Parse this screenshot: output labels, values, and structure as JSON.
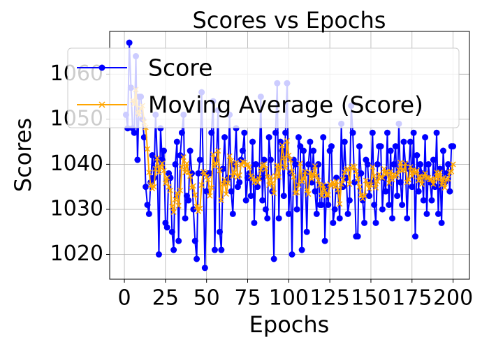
{
  "chart_data": {
    "type": "line",
    "title": "Scores vs Epochs",
    "x_label": "Epochs",
    "y_label": "Scores",
    "x": [
      1,
      2,
      3,
      4,
      5,
      6,
      7,
      8,
      9,
      10,
      11,
      12,
      13,
      14,
      15,
      16,
      17,
      18,
      19,
      20,
      21,
      22,
      23,
      24,
      25,
      26,
      27,
      28,
      29,
      30,
      31,
      32,
      33,
      34,
      35,
      36,
      37,
      38,
      39,
      40,
      41,
      42,
      43,
      44,
      45,
      46,
      47,
      48,
      49,
      50,
      51,
      52,
      53,
      54,
      55,
      56,
      57,
      58,
      59,
      60,
      61,
      62,
      63,
      64,
      65,
      66,
      67,
      68,
      69,
      70,
      71,
      72,
      73,
      74,
      75,
      76,
      77,
      78,
      79,
      80,
      81,
      82,
      83,
      84,
      85,
      86,
      87,
      88,
      89,
      90,
      91,
      92,
      93,
      94,
      95,
      96,
      97,
      98,
      99,
      100,
      101,
      102,
      103,
      104,
      105,
      106,
      107,
      108,
      109,
      110,
      111,
      112,
      113,
      114,
      115,
      116,
      117,
      118,
      119,
      120,
      121,
      122,
      123,
      124,
      125,
      126,
      127,
      128,
      129,
      130,
      131,
      132,
      133,
      134,
      135,
      136,
      137,
      138,
      139,
      140,
      141,
      142,
      143,
      144,
      145,
      146,
      147,
      148,
      149,
      150,
      151,
      152,
      153,
      154,
      155,
      156,
      157,
      158,
      159,
      160,
      161,
      162,
      163,
      164,
      165,
      166,
      167,
      168,
      169,
      170,
      171,
      172,
      173,
      174,
      175,
      176,
      177,
      178,
      179,
      180,
      181,
      182,
      183,
      184,
      185,
      186,
      187,
      188,
      189,
      190,
      191,
      192,
      193,
      194,
      195,
      196,
      197,
      198,
      199,
      200
    ],
    "series": [
      {
        "name": "Score",
        "color": "#0000ff",
        "marker": "o",
        "values": [
          1051,
          1048,
          1067,
          1057,
          1048,
          1047,
          1064,
          1041,
          1055,
          1055,
          1050,
          1046,
          1035,
          1031,
          1029,
          1036,
          1042,
          1037,
          1051,
          1041,
          1020,
          1048,
          1041,
          1043,
          1027,
          1026,
          1038,
          1037,
          1025,
          1021,
          1040,
          1045,
          1023,
          1042,
          1047,
          1051,
          1028,
          1033,
          1032,
          1043,
          1038,
          1030,
          1023,
          1019,
          1038,
          1041,
          1056,
          1038,
          1017,
          1034,
          1038,
          1038,
          1047,
          1054,
          1021,
          1041,
          1052,
          1025,
          1021,
          1039,
          1046,
          1036,
          1037,
          1051,
          1034,
          1029,
          1040,
          1048,
          1035,
          1036,
          1041,
          1043,
          1047,
          1032,
          1037,
          1038,
          1033,
          1045,
          1027,
          1040,
          1035,
          1037,
          1055,
          1032,
          1041,
          1030,
          1028,
          1046,
          1041,
          1034,
          1019,
          1047,
          1058,
          1028,
          1045,
          1043,
          1033,
          1047,
          1058,
          1029,
          1038,
          1020,
          1041,
          1040,
          1030,
          1046,
          1044,
          1021,
          1043,
          1038,
          1025,
          1040,
          1045,
          1036,
          1043,
          1034,
          1029,
          1040,
          1031,
          1031,
          1046,
          1023,
          1035,
          1031,
          1043,
          1044,
          1027,
          1030,
          1037,
          1034,
          1028,
          1049,
          1035,
          1045,
          1037,
          1029,
          1032,
          1053,
          1047,
          1036,
          1024,
          1024,
          1044,
          1038,
          1032,
          1027,
          1041,
          1040,
          1033,
          1036,
          1047,
          1031,
          1027,
          1040,
          1044,
          1044,
          1030,
          1037,
          1034,
          1047,
          1031,
          1043,
          1028,
          1040,
          1044,
          1033,
          1049,
          1036,
          1031,
          1045,
          1040,
          1028,
          1039,
          1045,
          1035,
          1047,
          1024,
          1042,
          1034,
          1040,
          1038,
          1032,
          1046,
          1029,
          1040,
          1036,
          1032,
          1041,
          1035,
          1047,
          1029,
          1039,
          1027,
          1043,
          1036,
          1038,
          1040,
          1034,
          1044,
          1044
        ]
      },
      {
        "name": "Moving Average (Score)",
        "color": "#ffa500",
        "marker": "x",
        "values": [
          null,
          null,
          null,
          null,
          1054.2,
          1053.4,
          1056.6,
          1051.4,
          1051.0,
          1052.4,
          1053.0,
          1049.4,
          1048.2,
          1043.4,
          1038.2,
          1035.4,
          1034.6,
          1035.0,
          1039.0,
          1041.4,
          1038.2,
          1039.4,
          1040.2,
          1038.6,
          1035.8,
          1037.0,
          1035.0,
          1034.2,
          1030.6,
          1029.4,
          1032.2,
          1033.6,
          1030.8,
          1034.2,
          1039.4,
          1041.6,
          1038.2,
          1040.2,
          1038.2,
          1037.4,
          1034.8,
          1035.2,
          1033.2,
          1030.6,
          1029.6,
          1030.2,
          1035.4,
          1038.4,
          1038.0,
          1037.2,
          1036.6,
          1033.0,
          1034.8,
          1042.2,
          1039.6,
          1040.2,
          1043.0,
          1038.6,
          1032.0,
          1035.6,
          1036.6,
          1033.4,
          1035.8,
          1041.8,
          1040.8,
          1037.4,
          1038.2,
          1040.4,
          1037.2,
          1037.6,
          1040.0,
          1040.6,
          1040.4,
          1039.8,
          1040.0,
          1039.4,
          1037.4,
          1037.0,
          1036.0,
          1036.6,
          1036.0,
          1036.8,
          1038.8,
          1039.8,
          1040.0,
          1039.0,
          1037.2,
          1035.4,
          1037.2,
          1035.8,
          1033.6,
          1037.4,
          1039.8,
          1037.2,
          1039.4,
          1044.2,
          1041.4,
          1039.2,
          1045.2,
          1042.0,
          1041.0,
          1038.4,
          1037.2,
          1033.6,
          1033.8,
          1035.4,
          1040.2,
          1036.2,
          1036.8,
          1038.4,
          1034.2,
          1033.4,
          1038.2,
          1036.8,
          1037.8,
          1039.6,
          1037.4,
          1036.4,
          1035.4,
          1033.0,
          1035.4,
          1034.2,
          1033.2,
          1033.2,
          1035.6,
          1035.2,
          1036.0,
          1035.0,
          1036.2,
          1034.4,
          1031.2,
          1035.6,
          1036.6,
          1038.2,
          1038.8,
          1039.0,
          1035.6,
          1039.2,
          1039.6,
          1039.4,
          1038.4,
          1036.8,
          1035.0,
          1033.2,
          1032.4,
          1033.0,
          1036.4,
          1035.6,
          1034.6,
          1035.4,
          1039.4,
          1037.4,
          1034.8,
          1036.2,
          1037.8,
          1037.2,
          1037.0,
          1039.0,
          1037.8,
          1038.4,
          1035.8,
          1038.4,
          1036.6,
          1037.8,
          1037.2,
          1037.6,
          1038.8,
          1040.4,
          1038.6,
          1038.8,
          1040.2,
          1036.0,
          1036.6,
          1039.4,
          1037.4,
          1038.8,
          1038.0,
          1038.6,
          1036.4,
          1037.4,
          1035.6,
          1037.2,
          1038.0,
          1037.0,
          1037.0,
          1036.6,
          1036.6,
          1035.6,
          1036.8,
          1038.2,
          1036.8,
          1038.2,
          1035.4,
          1037.0,
          1034.8,
          1036.6,
          1036.8,
          1038.2,
          1038.4,
          1040.0
        ]
      }
    ],
    "xlim": [
      -8.95,
      209.95
    ],
    "xticks": [
      0,
      25,
      50,
      75,
      100,
      125,
      150,
      175,
      200
    ],
    "ylim": [
      1014.5,
      1069.5
    ],
    "yticks": [
      1020,
      1030,
      1040,
      1050,
      1060
    ],
    "grid": true,
    "legend": "upper left"
  }
}
